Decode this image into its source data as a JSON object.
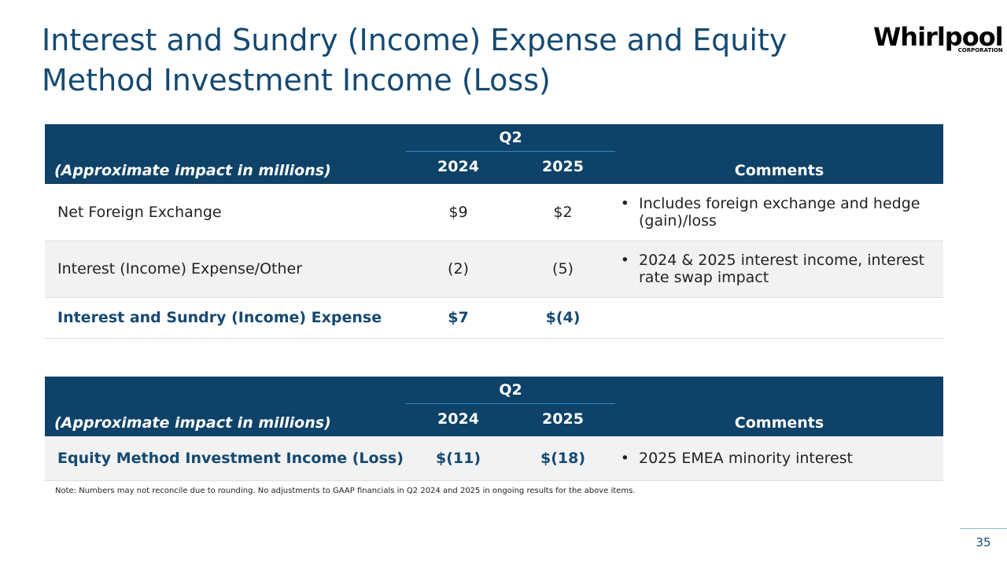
{
  "title": "Interest and Sundry (Income) Expense and Equity Method Investment Income (Loss)",
  "logo": {
    "name": "Whirlpool",
    "sub": "CORPORATION"
  },
  "table1": {
    "group": "Q2",
    "header": [
      "(Approximate impact in millions)",
      "2024",
      "2025",
      "Comments"
    ],
    "rows": [
      [
        "Net Foreign Exchange",
        "$9",
        "$2",
        "Includes foreign exchange and hedge (gain)/loss"
      ],
      [
        "Interest (Income) Expense/Other",
        "(2)",
        "(5)",
        "2024 & 2025 interest income, interest rate swap impact"
      ],
      [
        "Interest and Sundry (Income) Expense",
        "$7",
        "$(4)",
        null
      ]
    ]
  },
  "table2": {
    "group": "Q2",
    "header": [
      "(Approximate impact in millions)",
      "2024",
      "2025",
      "Comments"
    ],
    "rows": [
      [
        "Equity Method Investment Income (Loss)",
        "$(11)",
        "$(18)",
        "2025 EMEA minority interest"
      ]
    ]
  },
  "note": "Note: Numbers may not reconcile due to rounding. No adjustments to GAAP financials in Q2 2024 and 2025 in ongoing results for the above items.",
  "page": "35"
}
